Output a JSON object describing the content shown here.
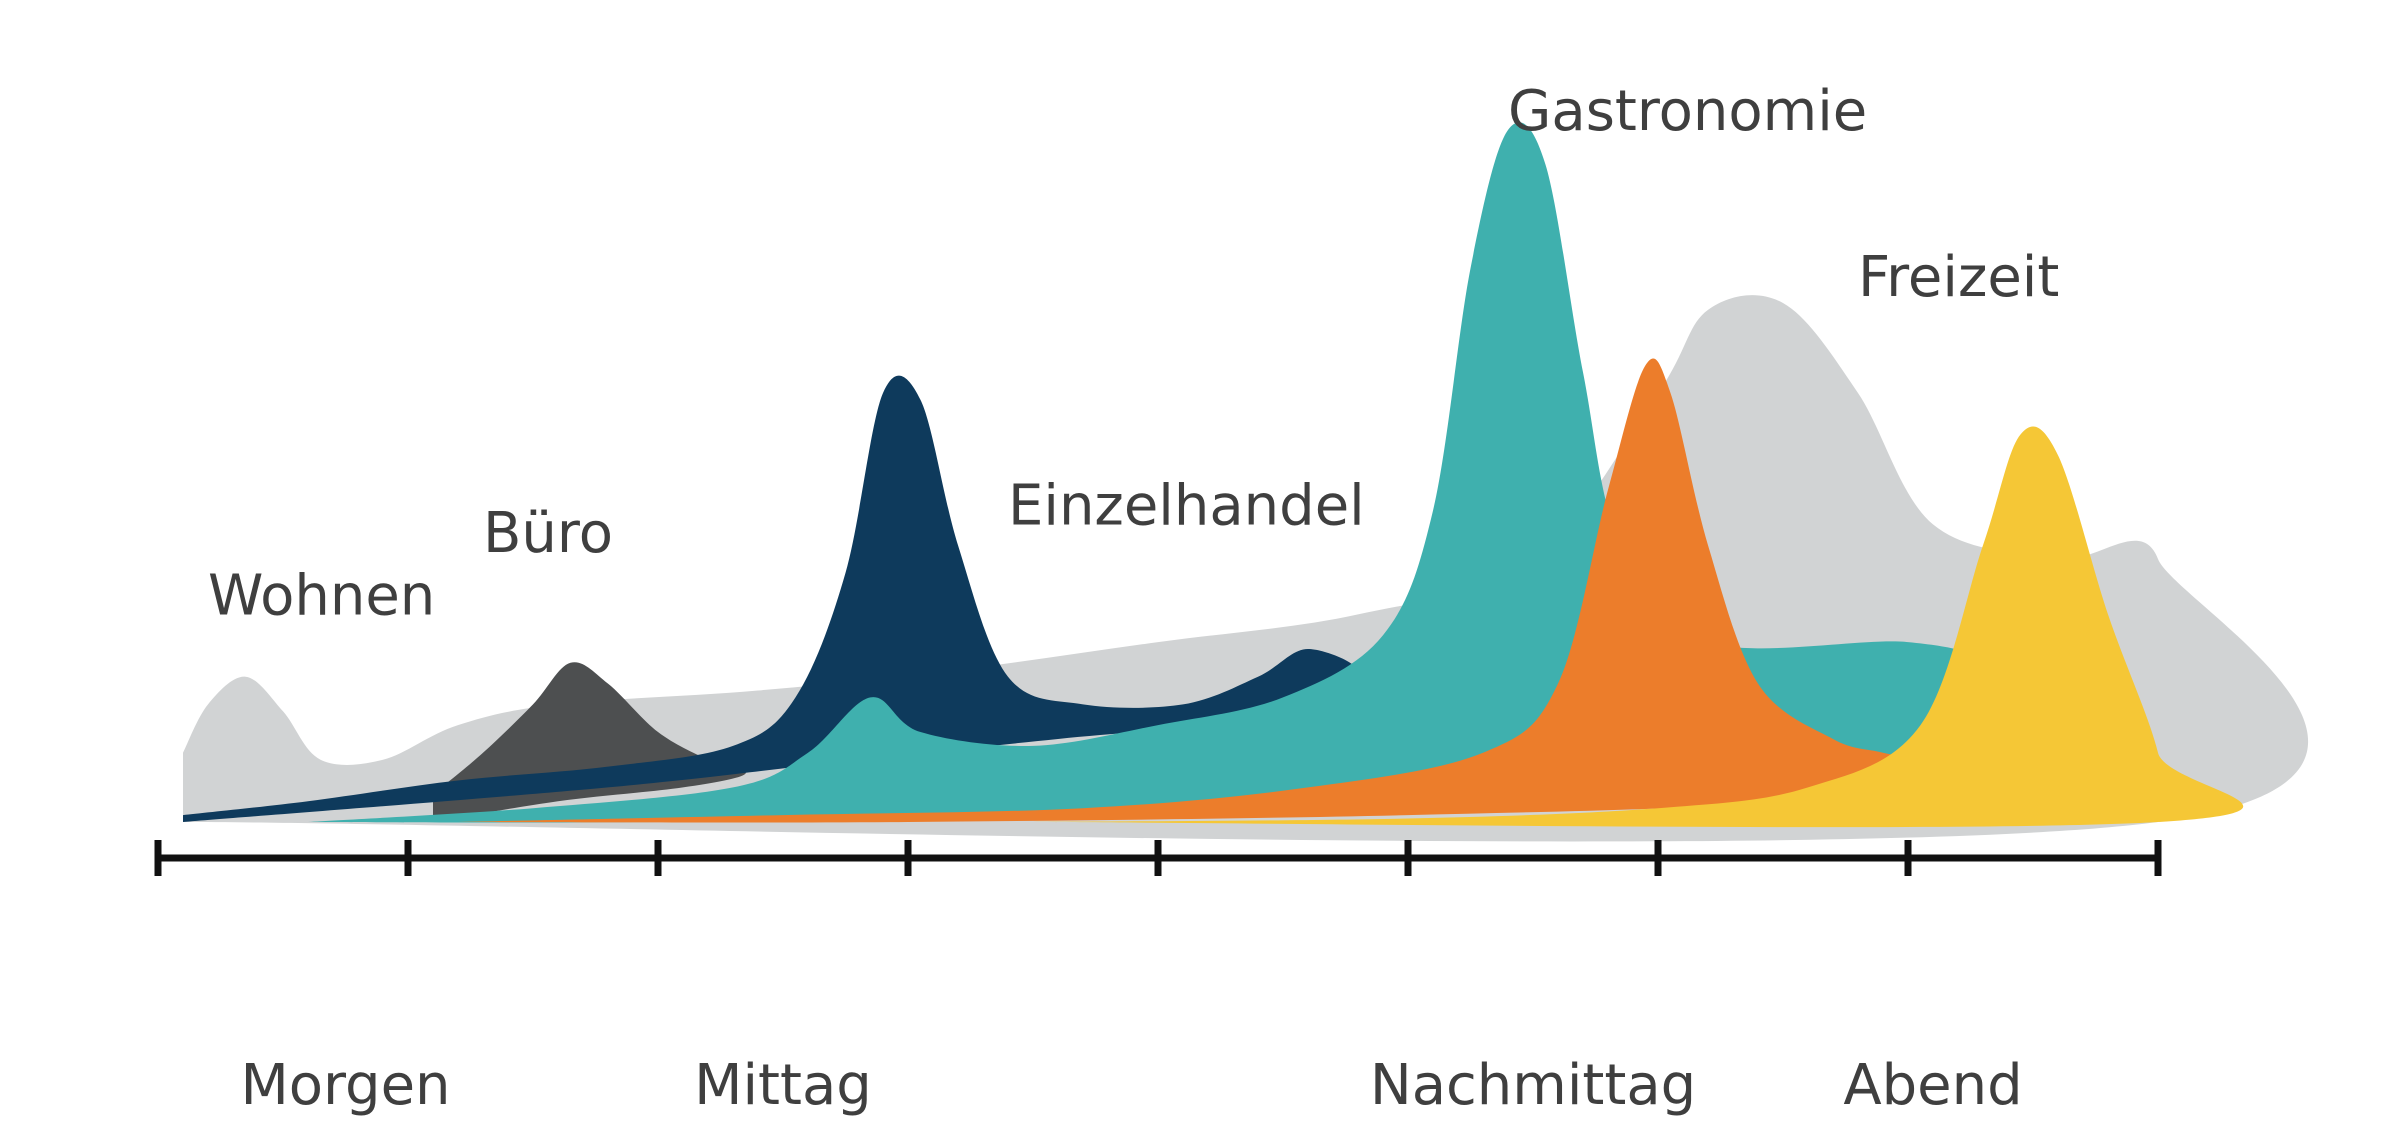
{
  "chart_data": {
    "type": "area",
    "title": "",
    "xlabel": "",
    "ylabel": "",
    "grid": false,
    "legend": "none",
    "x_range": [
      0,
      8
    ],
    "y_range": [
      0,
      100
    ],
    "x_ticks": [
      0,
      1,
      2,
      3,
      4,
      5,
      6,
      7,
      8
    ],
    "periods": [
      {
        "label": "Morgen",
        "x": 0.75
      },
      {
        "label": "Mittag",
        "x": 2.5
      },
      {
        "label": "Nachmittag",
        "x": 5.5
      },
      {
        "label": "Abend",
        "x": 7.1
      }
    ],
    "series": [
      {
        "name": "Wohnen",
        "color": "#d1d3d4",
        "label_at": [
          0.2,
          30
        ],
        "points": [
          [
            0.1,
            10
          ],
          [
            0.2,
            17
          ],
          [
            0.35,
            21
          ],
          [
            0.5,
            16
          ],
          [
            0.65,
            9
          ],
          [
            0.9,
            9
          ],
          [
            1.2,
            14
          ],
          [
            1.6,
            17
          ],
          [
            2.4,
            19
          ],
          [
            3.2,
            22
          ],
          [
            4.0,
            26
          ],
          [
            4.8,
            30
          ],
          [
            5.5,
            38
          ],
          [
            6.0,
            62
          ],
          [
            6.2,
            74
          ],
          [
            6.5,
            75
          ],
          [
            6.8,
            62
          ],
          [
            7.1,
            43
          ],
          [
            7.6,
            38
          ],
          [
            8.0,
            38
          ],
          [
            8.0,
            0
          ],
          [
            0.1,
            0
          ]
        ]
      },
      {
        "name": "Büro",
        "color": "#4d4f50",
        "label_at": [
          1.3,
          39
        ],
        "points": [
          [
            1.1,
            4
          ],
          [
            1.3,
            10
          ],
          [
            1.5,
            17
          ],
          [
            1.65,
            23
          ],
          [
            1.8,
            20
          ],
          [
            2.0,
            13
          ],
          [
            2.2,
            9
          ],
          [
            2.35,
            7
          ],
          [
            2.1,
            5
          ],
          [
            1.6,
            3
          ],
          [
            1.1,
            0
          ]
        ]
      },
      {
        "name": "Einzelhandel",
        "color": "#0e3a5c",
        "label_at": [
          3.4,
          43
        ],
        "points": [
          [
            0.1,
            1
          ],
          [
            0.6,
            3
          ],
          [
            1.2,
            6
          ],
          [
            1.8,
            8
          ],
          [
            2.3,
            11
          ],
          [
            2.55,
            18
          ],
          [
            2.75,
            36
          ],
          [
            2.9,
            62
          ],
          [
            3.05,
            61
          ],
          [
            3.2,
            40
          ],
          [
            3.4,
            21
          ],
          [
            3.7,
            17
          ],
          [
            4.1,
            17
          ],
          [
            4.4,
            21
          ],
          [
            4.6,
            25
          ],
          [
            4.8,
            21
          ],
          [
            4.4,
            15
          ],
          [
            3.6,
            12
          ],
          [
            2.8,
            9
          ],
          [
            1.8,
            5
          ],
          [
            0.1,
            0
          ]
        ]
      },
      {
        "name": "Gastronomie",
        "color": "#3fb0ae",
        "label_at": [
          5.4,
          100
        ],
        "points": [
          [
            0.6,
            0
          ],
          [
            1.5,
            2
          ],
          [
            2.3,
            5
          ],
          [
            2.6,
            10
          ],
          [
            2.85,
            18
          ],
          [
            3.05,
            13
          ],
          [
            3.5,
            11
          ],
          [
            4.0,
            14
          ],
          [
            4.5,
            18
          ],
          [
            4.9,
            27
          ],
          [
            5.1,
            45
          ],
          [
            5.25,
            80
          ],
          [
            5.4,
            100
          ],
          [
            5.55,
            95
          ],
          [
            5.7,
            65
          ],
          [
            5.85,
            40
          ],
          [
            6.2,
            26
          ],
          [
            7.0,
            26
          ],
          [
            7.3,
            22
          ],
          [
            7.1,
            10
          ],
          [
            6.5,
            7
          ],
          [
            5.5,
            4
          ],
          [
            4.0,
            1
          ],
          [
            2.0,
            0
          ],
          [
            0.6,
            0
          ]
        ]
      },
      {
        "name": "Freizeit",
        "color": "#ec7d2b",
        "label_at": [
          6.8,
          76
        ],
        "points": [
          [
            1.2,
            0
          ],
          [
            2.5,
            1
          ],
          [
            3.7,
            2
          ],
          [
            4.6,
            5
          ],
          [
            5.3,
            10
          ],
          [
            5.6,
            20
          ],
          [
            5.8,
            48
          ],
          [
            5.95,
            66
          ],
          [
            6.05,
            62
          ],
          [
            6.2,
            40
          ],
          [
            6.4,
            20
          ],
          [
            6.7,
            12
          ],
          [
            6.9,
            10
          ],
          [
            7.1,
            8
          ],
          [
            6.5,
            3
          ],
          [
            5.0,
            1
          ],
          [
            3.0,
            0
          ],
          [
            1.2,
            0
          ]
        ]
      },
      {
        "name": "",
        "color": "#f5c736",
        "label_at": null,
        "points": [
          [
            3.5,
            0
          ],
          [
            5.0,
            0.5
          ],
          [
            6.0,
            2
          ],
          [
            6.6,
            5
          ],
          [
            7.05,
            14
          ],
          [
            7.3,
            40
          ],
          [
            7.45,
            56
          ],
          [
            7.6,
            53
          ],
          [
            7.8,
            30
          ],
          [
            8.0,
            10
          ],
          [
            8.0,
            0
          ],
          [
            3.5,
            0
          ]
        ]
      }
    ]
  }
}
